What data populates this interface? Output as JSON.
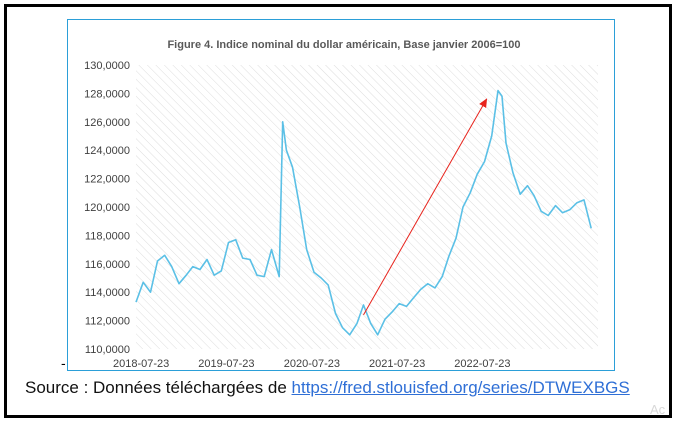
{
  "footer": {
    "source_prefix": "Source : Données téléchargées de ",
    "source_link": "https://fred.stlouisfed.org/series/DTWEXBGS"
  },
  "watermark_text": "Ac",
  "colors": {
    "series": "#5bc0e6",
    "arrow": "#e8231c",
    "chart_border": "#2b9fd8",
    "hatch": "#dddddd",
    "link": "#2f6fd6"
  },
  "chart_data": {
    "type": "line",
    "title": "Figure 4. Indice nominal du dollar américain, Base janvier 2006=100",
    "xlabel": "",
    "ylabel": "",
    "ylim": [
      110,
      130
    ],
    "xlim": [
      "2018-07-01",
      "2023-11-30"
    ],
    "yticks": [
      "130,0000",
      "128,0000",
      "126,0000",
      "124,0000",
      "122,0000",
      "120,0000",
      "118,0000",
      "116,0000",
      "114,0000",
      "112,0000",
      "110,0000"
    ],
    "xticks": [
      "2018-07-23",
      "2019-07-23",
      "2020-07-23",
      "2021-07-23",
      "2022-07-23"
    ],
    "background": "diagonal hatch",
    "grid": false,
    "legend": "none",
    "series": [
      {
        "x": [
          "2018-07-01",
          "2018-08-01",
          "2018-09-01",
          "2018-10-01",
          "2018-11-01",
          "2018-12-01",
          "2019-01-01",
          "2019-02-01",
          "2019-03-01",
          "2019-04-01",
          "2019-05-01",
          "2019-06-01",
          "2019-07-01",
          "2019-08-01",
          "2019-09-01",
          "2019-10-01",
          "2019-11-01",
          "2019-12-01",
          "2020-01-01",
          "2020-02-01",
          "2020-03-05",
          "2020-03-20",
          "2020-04-05",
          "2020-05-01",
          "2020-06-01",
          "2020-07-01",
          "2020-08-01",
          "2020-09-01",
          "2020-10-01",
          "2020-11-01",
          "2020-12-01",
          "2021-01-01",
          "2021-02-01",
          "2021-03-01",
          "2021-04-01",
          "2021-05-01",
          "2021-06-01",
          "2021-07-01",
          "2021-08-01",
          "2021-09-01",
          "2021-10-01",
          "2021-11-01",
          "2021-12-01",
          "2022-01-01",
          "2022-02-01",
          "2022-03-01",
          "2022-04-01",
          "2022-05-01",
          "2022-06-01",
          "2022-07-01",
          "2022-08-01",
          "2022-09-01",
          "2022-09-28",
          "2022-10-15",
          "2022-11-01",
          "2022-12-01",
          "2023-01-01",
          "2023-02-01",
          "2023-03-01",
          "2023-04-01",
          "2023-05-01",
          "2023-06-01",
          "2023-07-01",
          "2023-08-01",
          "2023-09-01",
          "2023-10-01",
          "2023-11-01"
        ],
        "y": [
          113.3,
          114.7,
          114.0,
          116.2,
          116.6,
          115.8,
          114.6,
          115.2,
          115.8,
          115.6,
          116.3,
          115.2,
          115.5,
          117.5,
          117.7,
          116.4,
          116.3,
          115.2,
          115.1,
          117.0,
          115.1,
          126.0,
          124.0,
          122.8,
          120.0,
          117.0,
          115.4,
          115.0,
          114.5,
          112.5,
          111.5,
          111.0,
          111.8,
          113.1,
          111.8,
          111.0,
          112.1,
          112.6,
          113.2,
          113.0,
          113.6,
          114.2,
          114.6,
          114.3,
          115.1,
          116.5,
          117.8,
          120.0,
          121.0,
          122.3,
          123.2,
          125.0,
          128.2,
          127.8,
          124.5,
          122.4,
          120.9,
          121.5,
          120.8,
          119.7,
          119.4,
          120.1,
          119.6,
          119.8,
          120.3,
          120.5,
          118.5
        ]
      }
    ],
    "annotations": [
      {
        "type": "arrow",
        "from": {
          "x": "2021-03-01",
          "y": 112.4
        },
        "to": {
          "x": "2022-08-10",
          "y": 127.6
        }
      }
    ]
  }
}
